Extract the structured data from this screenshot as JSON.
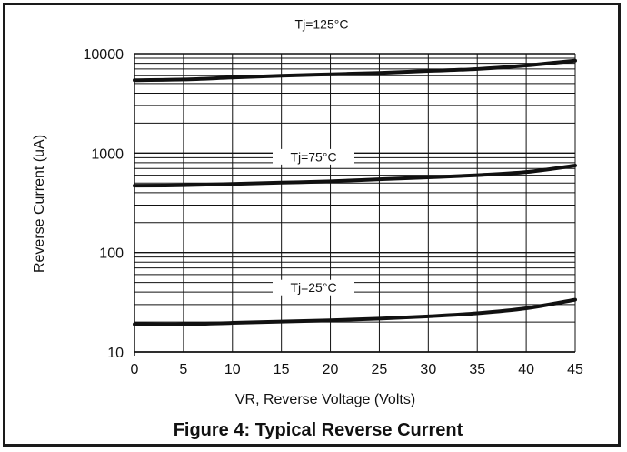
{
  "chart_data": {
    "type": "line",
    "title": "Figure 4: Typical Reverse Current",
    "xlabel": "VR, Reverse Voltage (Volts)",
    "ylabel": "Reverse Current (uA)",
    "xlim": [
      0,
      45
    ],
    "ylim": [
      10,
      10000
    ],
    "yscale": "log",
    "grid": true,
    "x_ticks": [
      "0",
      "5",
      "10",
      "15",
      "20",
      "25",
      "30",
      "35",
      "40",
      "45"
    ],
    "y_ticks": [
      "10",
      "100",
      "1000",
      "10000"
    ],
    "x": [
      0,
      5,
      10,
      15,
      20,
      25,
      30,
      35,
      40,
      45
    ],
    "series": [
      {
        "name": "Tj=125°C",
        "values": [
          5400,
          5500,
          5750,
          6000,
          6200,
          6400,
          6700,
          7000,
          7600,
          8500
        ]
      },
      {
        "name": "Tj=75°C",
        "values": [
          470,
          475,
          490,
          505,
          520,
          545,
          570,
          600,
          645,
          750
        ]
      },
      {
        "name": "Tj=25°C",
        "values": [
          19,
          19,
          19.6,
          20.2,
          20.8,
          21.6,
          22.8,
          24.5,
          27.5,
          33.5
        ]
      }
    ]
  },
  "colors": {
    "line": "#111111",
    "grid": "#111111",
    "border": "#1a1a1a"
  }
}
